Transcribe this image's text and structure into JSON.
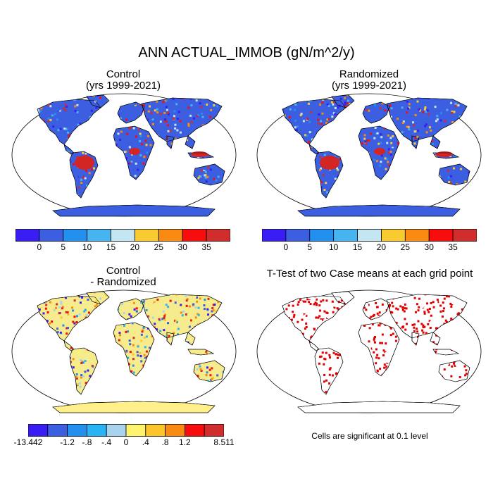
{
  "main_title": "ANN ACTUAL_IMMOB (gN/m^2/y)",
  "panels": {
    "control": {
      "title_line1": "Control",
      "title_line2": "(yrs 1999-2021)"
    },
    "randomized": {
      "title_line1": "Randomized",
      "title_line2": "(yrs 1999-2021)"
    },
    "difference": {
      "title_line1": "Control",
      "title_line2": "- Randomized"
    },
    "ttest": {
      "title_line1": "T-Test of two Case means at each grid point"
    }
  },
  "colorbar_top": {
    "colors": [
      "#3a1cf5",
      "#3c5ee0",
      "#2390f0",
      "#46b4ee",
      "#c3e6f2",
      "#f9cb2e",
      "#f98b12",
      "#f70d0d",
      "#d22d2d"
    ],
    "labels": [
      "0",
      "5",
      "10",
      "15",
      "20",
      "25",
      "30",
      "35"
    ]
  },
  "colorbar_diff": {
    "colors": [
      "#3a1cf5",
      "#3c5ee0",
      "#2390f0",
      "#29b5f5",
      "#a7d3ef",
      "#fff36e",
      "#fbc52b",
      "#f98b12",
      "#f70d0d",
      "#d22d2d"
    ],
    "labels": [
      "-13.442",
      "-1.2",
      "-.8",
      "-.4",
      "0",
      ".4",
      ".8",
      "1.2",
      "8.511"
    ]
  },
  "footnote": "Cells are significant at 0.1 level",
  "colors": {
    "ocean": "#ffffff",
    "land_ttest": "#ffffff",
    "significant": "#e30000",
    "antarctica_top": "#3c5ee0",
    "antarctica_diff": "#fff08a",
    "tropics": "#d42525",
    "land_base": "#3c5ee0",
    "diff_land": "#f6ec8e"
  }
}
